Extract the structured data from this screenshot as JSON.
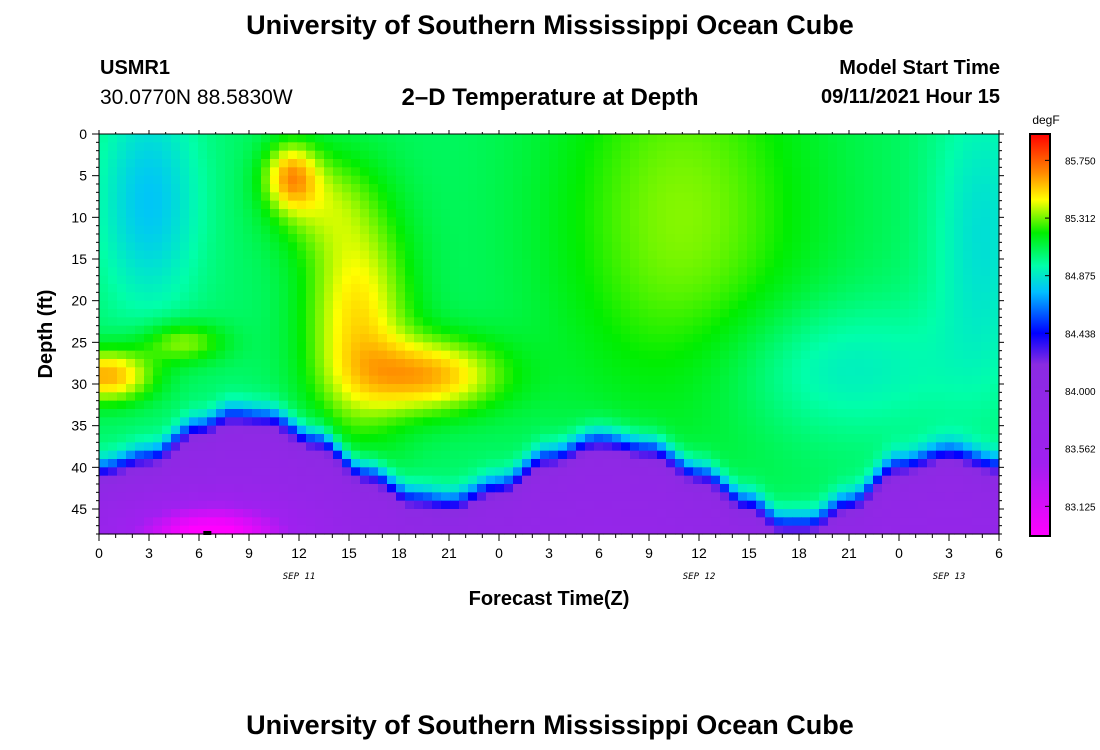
{
  "header": {
    "title": "University of Southern Mississippi Ocean Cube",
    "station_id": "USMR1",
    "station_coords": "30.0770N  88.5830W",
    "plot_title": "2–D Temperature at Depth",
    "model_label": "Model Start Time",
    "model_time": "09/11/2021 Hour 15"
  },
  "footer": {
    "title": "University of Southern Mississippi Ocean Cube"
  },
  "chart_data": {
    "type": "heatmap",
    "title": "2–D Temperature at Depth",
    "xlabel": "Forecast Time(Z)",
    "ylabel": "Depth (ft)",
    "x_range_hours": [
      0,
      54
    ],
    "x_tick_labels": [
      "0",
      "3",
      "6",
      "9",
      "12",
      "15",
      "18",
      "21",
      "0",
      "3",
      "6",
      "9",
      "12",
      "15",
      "18",
      "21",
      "0",
      "3",
      "6"
    ],
    "date_labels": [
      {
        "label": "SEP 11",
        "hour": 12
      },
      {
        "label": "SEP 12",
        "hour": 36
      },
      {
        "label": "SEP 13",
        "hour": 51
      }
    ],
    "y_range": [
      0,
      48
    ],
    "y_ticks": [
      0,
      5,
      10,
      15,
      20,
      25,
      30,
      35,
      40,
      45
    ],
    "colorbar": {
      "unit": "degF",
      "range": [
        82.9,
        85.95
      ],
      "tick_values": [
        85.75,
        85.312,
        84.875,
        84.438,
        84.0,
        83.562,
        83.125
      ],
      "tick_labels": [
        "85.750",
        "85.312",
        "84.875",
        "84.438",
        "84.000",
        "83.562",
        "83.125"
      ],
      "color_stops": [
        {
          "v": 82.9,
          "c": "#ff00ff"
        },
        {
          "v": 83.45,
          "c": "#a020f0"
        },
        {
          "v": 84.2,
          "c": "#8a2be2"
        },
        {
          "v": 84.438,
          "c": "#0000ff"
        },
        {
          "v": 84.75,
          "c": "#00bfff"
        },
        {
          "v": 84.95,
          "c": "#00ffaa"
        },
        {
          "v": 85.2,
          "c": "#00ee00"
        },
        {
          "v": 85.45,
          "c": "#ffff00"
        },
        {
          "v": 85.65,
          "c": "#ff8c00"
        },
        {
          "v": 85.95,
          "c": "#ff0000"
        }
      ]
    },
    "field": {
      "thermocline_depth_ft": [
        [
          0,
          40
        ],
        [
          3,
          38.5
        ],
        [
          6,
          35
        ],
        [
          8,
          33.5
        ],
        [
          10,
          33.8
        ],
        [
          13,
          36.5
        ],
        [
          16,
          40.5
        ],
        [
          19,
          43.5
        ],
        [
          21,
          44
        ],
        [
          24,
          42
        ],
        [
          27,
          38.5
        ],
        [
          30,
          36.5
        ],
        [
          33,
          37.5
        ],
        [
          36,
          40.5
        ],
        [
          39,
          44
        ],
        [
          41,
          46.5
        ],
        [
          42.5,
          46.5
        ],
        [
          45,
          44
        ],
        [
          48,
          39.5
        ],
        [
          51,
          38
        ],
        [
          54,
          39.5
        ]
      ],
      "warm_core": {
        "hour": 11.5,
        "depth_ft": 5,
        "value": 85.9
      },
      "cold_core": {
        "hour": 6.5,
        "depth_ft": 48,
        "value": 82.9
      }
    }
  }
}
